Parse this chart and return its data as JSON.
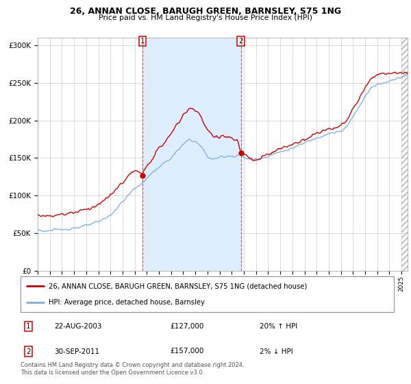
{
  "title_line1": "26, ANNAN CLOSE, BARUGH GREEN, BARNSLEY, S75 1NG",
  "title_line2": "Price paid vs. HM Land Registry's House Price Index (HPI)",
  "legend_line1": "26, ANNAN CLOSE, BARUGH GREEN, BARNSLEY, S75 1NG (detached house)",
  "legend_line2": "HPI: Average price, detached house, Barnsley",
  "footnote": "Contains HM Land Registry data © Crown copyright and database right 2024.\nThis data is licensed under the Open Government Licence v3.0.",
  "transaction1_label": "1",
  "transaction1_date": "22-AUG-2003",
  "transaction1_price": "£127,000",
  "transaction1_hpi": "20% ↑ HPI",
  "transaction2_label": "2",
  "transaction2_date": "30-SEP-2011",
  "transaction2_price": "£157,000",
  "transaction2_hpi": "2% ↓ HPI",
  "red_color": "#cc0000",
  "blue_color": "#7aacdc",
  "shading_color": "#ddeeff",
  "background_color": "#ffffff",
  "grid_color": "#cccccc",
  "marker1_x": 2003.64,
  "marker1_y": 127000,
  "marker2_x": 2011.75,
  "marker2_y": 157000,
  "vline1_x": 2003.64,
  "vline2_x": 2011.75,
  "xmin": 1995.0,
  "xmax": 2025.5,
  "ymin": 0,
  "ymax": 310000,
  "yticks": [
    0,
    50000,
    100000,
    150000,
    200000,
    250000,
    300000
  ],
  "ytick_labels": [
    "£0",
    "£50K",
    "£100K",
    "£150K",
    "£200K",
    "£250K",
    "£300K"
  ]
}
